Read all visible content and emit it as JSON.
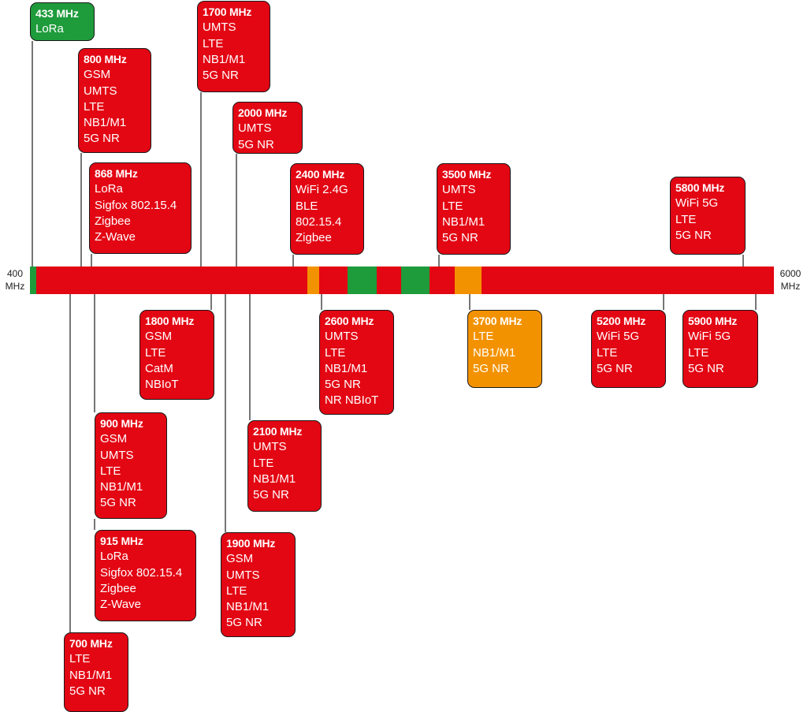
{
  "axis": {
    "min_value": "400",
    "min_unit": "MHz",
    "max_value": "6000",
    "max_unit": "MHz"
  },
  "colors": {
    "licensed": "#e30613",
    "unlicensed": "#1e9b3b",
    "partial": "#f39200"
  },
  "bands": [
    {
      "frequency": "433 MHz",
      "technologies": [
        "LoRa"
      ],
      "color": "unlicensed"
    },
    {
      "frequency": "800 MHz",
      "technologies": [
        "GSM",
        "UMTS",
        "LTE",
        "NB1/M1",
        "5G NR"
      ],
      "color": "licensed"
    },
    {
      "frequency": "868 MHz",
      "technologies": [
        "LoRa",
        "Sigfox 802.15.4",
        "Zigbee",
        "Z-Wave"
      ],
      "color": "licensed"
    },
    {
      "frequency": "1700 MHz",
      "technologies": [
        "UMTS",
        "LTE",
        "NB1/M1",
        "5G NR"
      ],
      "color": "licensed"
    },
    {
      "frequency": "2000 MHz",
      "technologies": [
        "UMTS",
        "5G NR"
      ],
      "color": "licensed"
    },
    {
      "frequency": "2400 MHz",
      "technologies": [
        "WiFi 2.4G",
        "BLE",
        "802.15.4",
        "Zigbee"
      ],
      "color": "licensed"
    },
    {
      "frequency": "3500 MHz",
      "technologies": [
        "UMTS",
        "LTE",
        "NB1/M1",
        "5G NR"
      ],
      "color": "licensed"
    },
    {
      "frequency": "5800 MHz",
      "technologies": [
        "WiFi 5G",
        "LTE",
        "5G NR"
      ],
      "color": "licensed"
    },
    {
      "frequency": "1800 MHz",
      "technologies": [
        "GSM",
        "LTE",
        "CatM",
        "NBIoT"
      ],
      "color": "licensed"
    },
    {
      "frequency": "2600 MHz",
      "technologies": [
        "UMTS",
        "LTE",
        "NB1/M1",
        "5G NR",
        "NR NBIoT"
      ],
      "color": "licensed"
    },
    {
      "frequency": "3700 MHz",
      "technologies": [
        "LTE",
        "NB1/M1",
        "5G NR"
      ],
      "color": "partial"
    },
    {
      "frequency": "5200 MHz",
      "technologies": [
        "WiFi 5G",
        "LTE",
        "5G NR"
      ],
      "color": "licensed"
    },
    {
      "frequency": "5900 MHz",
      "technologies": [
        "WiFi 5G",
        "LTE",
        "5G NR"
      ],
      "color": "licensed"
    },
    {
      "frequency": "900 MHz",
      "technologies": [
        "GSM",
        "UMTS",
        "LTE",
        "NB1/M1",
        "5G NR"
      ],
      "color": "licensed"
    },
    {
      "frequency": "2100 MHz",
      "technologies": [
        "UMTS",
        "LTE",
        "NB1/M1",
        "5G NR"
      ],
      "color": "licensed"
    },
    {
      "frequency": "915 MHz",
      "technologies": [
        "LoRa",
        "Sigfox 802.15.4",
        "Zigbee",
        "Z-Wave"
      ],
      "color": "licensed"
    },
    {
      "frequency": "1900 MHz",
      "technologies": [
        "GSM",
        "UMTS",
        "LTE",
        "NB1/M1",
        "5G NR"
      ],
      "color": "licensed"
    },
    {
      "frequency": "700 MHz",
      "technologies": [
        "LTE",
        "NB1/M1",
        "5G NR"
      ],
      "color": "licensed"
    }
  ]
}
